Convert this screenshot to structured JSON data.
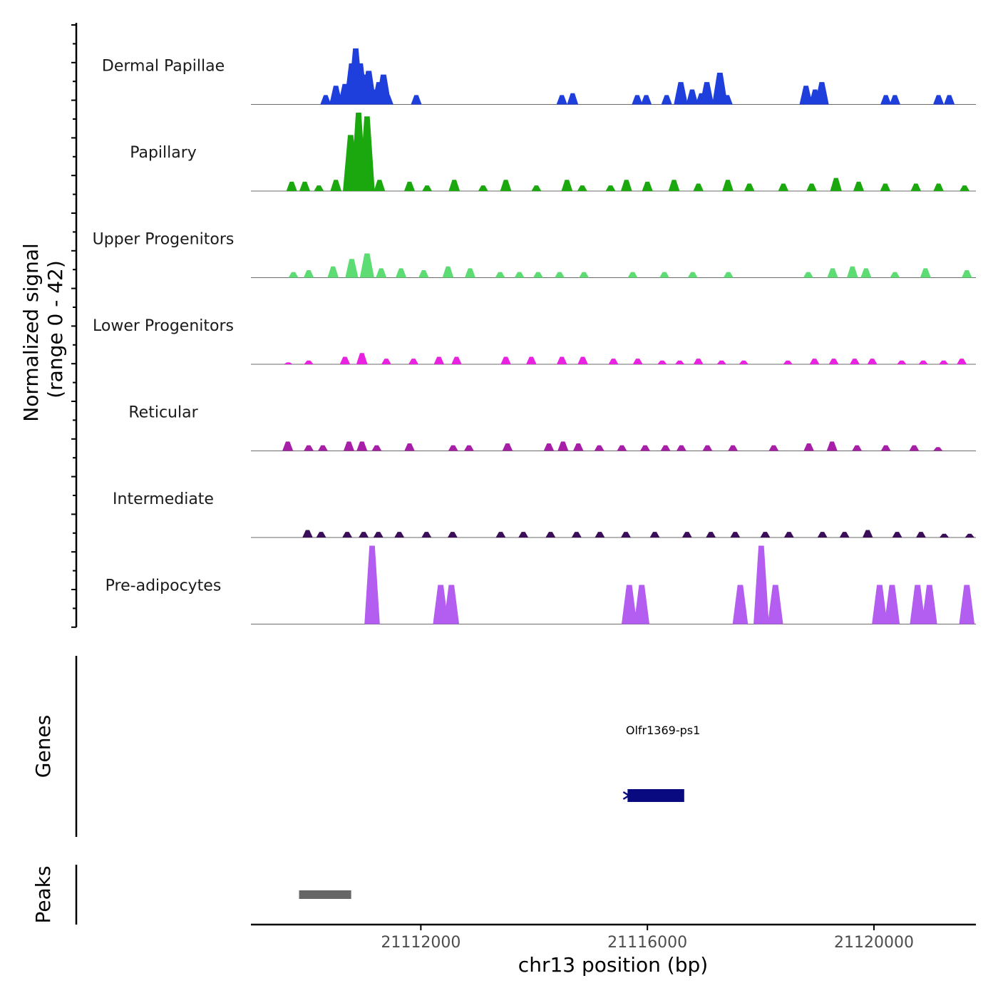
{
  "chart_data": {
    "type": "area",
    "title": "",
    "xlabel": "chr13 position (bp)",
    "ylabel": "Normalized signal\n(range 0 - 42)",
    "ylabel_lines": [
      "Normalized signal",
      "(range 0 - 42)"
    ],
    "signal_range": [
      0,
      42
    ],
    "xlim": [
      21109000,
      21121800
    ],
    "x_ticks": [
      21112000,
      21116000,
      21120000
    ],
    "x_tick_labels": [
      "21112000",
      "21116000",
      "21120000"
    ],
    "tracks": [
      {
        "name": "Dermal Papillae",
        "color": "#1f3fdc",
        "peaks": [
          [
            21110320,
            5
          ],
          [
            21110500,
            10
          ],
          [
            21110660,
            11
          ],
          [
            21110780,
            22
          ],
          [
            21110850,
            30
          ],
          [
            21110930,
            22
          ],
          [
            21111010,
            16
          ],
          [
            21111080,
            18
          ],
          [
            21111150,
            8
          ],
          [
            21111260,
            12
          ],
          [
            21111340,
            16
          ],
          [
            21111420,
            5
          ],
          [
            21111920,
            5
          ],
          [
            21114490,
            5
          ],
          [
            21114680,
            6
          ],
          [
            21115820,
            5
          ],
          [
            21115980,
            5
          ],
          [
            21116340,
            5
          ],
          [
            21116590,
            12
          ],
          [
            21116790,
            8
          ],
          [
            21116950,
            6
          ],
          [
            21117050,
            12
          ],
          [
            21117280,
            17
          ],
          [
            21117410,
            5
          ],
          [
            21118800,
            10
          ],
          [
            21118960,
            8
          ],
          [
            21119080,
            12
          ],
          [
            21120210,
            5
          ],
          [
            21120370,
            5
          ],
          [
            21121140,
            5
          ],
          [
            21121330,
            5
          ]
        ]
      },
      {
        "name": "Papillary",
        "color": "#1aa80e",
        "peaks": [
          [
            21109720,
            5
          ],
          [
            21109950,
            5
          ],
          [
            21110200,
            3
          ],
          [
            21110500,
            6
          ],
          [
            21110760,
            30
          ],
          [
            21110900,
            42
          ],
          [
            21111050,
            40
          ],
          [
            21111270,
            6
          ],
          [
            21111800,
            5
          ],
          [
            21112110,
            3
          ],
          [
            21112590,
            6
          ],
          [
            21113100,
            3
          ],
          [
            21113500,
            6
          ],
          [
            21114040,
            3
          ],
          [
            21114580,
            6
          ],
          [
            21114850,
            3
          ],
          [
            21115350,
            3
          ],
          [
            21115630,
            6
          ],
          [
            21116000,
            5
          ],
          [
            21116470,
            6
          ],
          [
            21116900,
            4
          ],
          [
            21117420,
            6
          ],
          [
            21117800,
            4
          ],
          [
            21118400,
            4
          ],
          [
            21118900,
            4
          ],
          [
            21119330,
            7
          ],
          [
            21119730,
            5
          ],
          [
            21120200,
            4
          ],
          [
            21120740,
            4
          ],
          [
            21121140,
            4
          ],
          [
            21121600,
            3
          ]
        ]
      },
      {
        "name": "Upper Progenitors",
        "color": "#5ddc73",
        "peaks": [
          [
            21109750,
            3
          ],
          [
            21110020,
            4
          ],
          [
            21110450,
            6
          ],
          [
            21110780,
            10
          ],
          [
            21111050,
            13
          ],
          [
            21111300,
            5
          ],
          [
            21111650,
            5
          ],
          [
            21112050,
            4
          ],
          [
            21112480,
            6
          ],
          [
            21112870,
            5
          ],
          [
            21113400,
            3
          ],
          [
            21113740,
            3
          ],
          [
            21114070,
            3
          ],
          [
            21114450,
            3
          ],
          [
            21114880,
            3
          ],
          [
            21115740,
            3
          ],
          [
            21116300,
            3
          ],
          [
            21116800,
            3
          ],
          [
            21117430,
            3
          ],
          [
            21118840,
            3
          ],
          [
            21119270,
            5
          ],
          [
            21119620,
            6
          ],
          [
            21119860,
            5
          ],
          [
            21120370,
            3
          ],
          [
            21120910,
            5
          ],
          [
            21121640,
            4
          ]
        ]
      },
      {
        "name": "Lower Progenitors",
        "color": "#e822e0",
        "peaks": [
          [
            21109660,
            1
          ],
          [
            21110020,
            2
          ],
          [
            21110660,
            4
          ],
          [
            21110960,
            6
          ],
          [
            21111390,
            3
          ],
          [
            21111870,
            3
          ],
          [
            21112320,
            4
          ],
          [
            21112630,
            4
          ],
          [
            21113500,
            4
          ],
          [
            21113950,
            4
          ],
          [
            21114490,
            4
          ],
          [
            21114860,
            4
          ],
          [
            21115400,
            3
          ],
          [
            21115830,
            3
          ],
          [
            21116260,
            2
          ],
          [
            21116570,
            2
          ],
          [
            21116900,
            3
          ],
          [
            21117310,
            2
          ],
          [
            21117700,
            2
          ],
          [
            21118480,
            2
          ],
          [
            21118950,
            3
          ],
          [
            21119290,
            3
          ],
          [
            21119660,
            3
          ],
          [
            21119970,
            3
          ],
          [
            21120490,
            2
          ],
          [
            21120870,
            2
          ],
          [
            21121230,
            2
          ],
          [
            21121550,
            3
          ]
        ]
      },
      {
        "name": "Reticular",
        "color": "#a61fa6",
        "peaks": [
          [
            21109650,
            5
          ],
          [
            21110020,
            3
          ],
          [
            21110270,
            3
          ],
          [
            21110730,
            5
          ],
          [
            21110960,
            5
          ],
          [
            21111220,
            3
          ],
          [
            21111800,
            4
          ],
          [
            21112570,
            3
          ],
          [
            21112850,
            3
          ],
          [
            21113530,
            4
          ],
          [
            21114260,
            4
          ],
          [
            21114510,
            5
          ],
          [
            21114780,
            4
          ],
          [
            21115150,
            3
          ],
          [
            21115550,
            3
          ],
          [
            21115960,
            3
          ],
          [
            21116320,
            3
          ],
          [
            21116600,
            3
          ],
          [
            21117060,
            3
          ],
          [
            21117510,
            3
          ],
          [
            21118230,
            3
          ],
          [
            21118850,
            4
          ],
          [
            21119260,
            5
          ],
          [
            21119700,
            3
          ],
          [
            21120210,
            3
          ],
          [
            21120710,
            3
          ],
          [
            21121130,
            2
          ]
        ]
      },
      {
        "name": "Intermediate",
        "color": "#3b0e59",
        "peaks": [
          [
            21110000,
            4
          ],
          [
            21110240,
            3
          ],
          [
            21110700,
            3
          ],
          [
            21110990,
            3
          ],
          [
            21111250,
            3
          ],
          [
            21111620,
            3
          ],
          [
            21112100,
            3
          ],
          [
            21112560,
            3
          ],
          [
            21113410,
            3
          ],
          [
            21113810,
            3
          ],
          [
            21114290,
            3
          ],
          [
            21114750,
            3
          ],
          [
            21115160,
            3
          ],
          [
            21115620,
            3
          ],
          [
            21116130,
            3
          ],
          [
            21116700,
            3
          ],
          [
            21117120,
            3
          ],
          [
            21117550,
            3
          ],
          [
            21118080,
            3
          ],
          [
            21118500,
            3
          ],
          [
            21119090,
            3
          ],
          [
            21119480,
            3
          ],
          [
            21119890,
            4
          ],
          [
            21120410,
            3
          ],
          [
            21120830,
            3
          ],
          [
            21121240,
            2
          ],
          [
            21121690,
            2
          ]
        ]
      },
      {
        "name": "Pre-adipocytes",
        "color": "#b35ef0",
        "peaks": [
          [
            21111140,
            42
          ],
          [
            21112350,
            21
          ],
          [
            21112540,
            21
          ],
          [
            21115680,
            21
          ],
          [
            21115900,
            21
          ],
          [
            21117640,
            21
          ],
          [
            21118010,
            42
          ],
          [
            21118260,
            21
          ],
          [
            21120100,
            21
          ],
          [
            21120320,
            21
          ],
          [
            21120770,
            21
          ],
          [
            21120980,
            21
          ],
          [
            21121640,
            21
          ]
        ]
      }
    ],
    "genes_label": "Genes",
    "genes": [
      {
        "name": "Olfr1369-ps1",
        "start": 21115650,
        "end": 21116650,
        "strand": "-",
        "color": "#0a0a80"
      }
    ],
    "peaks_label": "Peaks",
    "peak_regions": [
      {
        "start": 21109850,
        "end": 21110770,
        "color": "#666666"
      }
    ]
  }
}
